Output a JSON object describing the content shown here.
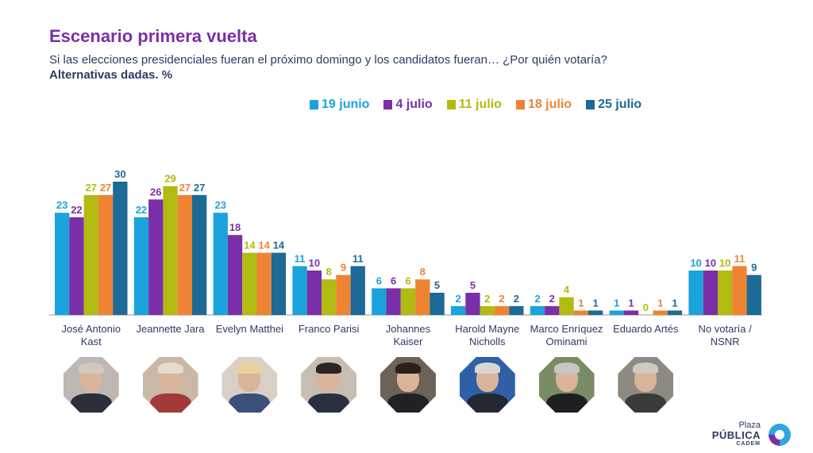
{
  "header": {
    "title": "Escenario primera vuelta",
    "subtitle": "Si las elecciones presidenciales fueran el próximo domingo y los candidatos fueran… ¿Por quién votaría?",
    "note": "Alternativas dadas. %"
  },
  "colors": {
    "19 junio": "#1aa3dc",
    "4 julio": "#7a2fa8",
    "11 julio": "#b1bb12",
    "18 julio": "#ee8433",
    "25 julio": "#1c6a95",
    "title": "#7a2fa8",
    "text": "#2e3b63"
  },
  "chart_data": {
    "type": "bar",
    "categories": [
      [
        "José Antonio",
        "Kast"
      ],
      [
        "Jeannette Jara"
      ],
      [
        "Evelyn Matthei"
      ],
      [
        "Franco Parisi"
      ],
      [
        "Johannes",
        "Kaiser"
      ],
      [
        "Harold Mayne",
        "Nicholls"
      ],
      [
        "Marco Enríquez",
        "Ominami"
      ],
      [
        "Eduardo Artés"
      ],
      [
        "No votaría /",
        "NSNR"
      ]
    ],
    "series": [
      {
        "name": "19 junio",
        "values": [
          23,
          22,
          23,
          11,
          6,
          2,
          2,
          1,
          10
        ]
      },
      {
        "name": "4 julio",
        "values": [
          22,
          26,
          18,
          10,
          6,
          5,
          2,
          1,
          10
        ]
      },
      {
        "name": "11 julio",
        "values": [
          27,
          29,
          14,
          8,
          6,
          2,
          4,
          0,
          10
        ]
      },
      {
        "name": "18 julio",
        "values": [
          27,
          27,
          14,
          9,
          8,
          2,
          1,
          1,
          11
        ]
      },
      {
        "name": "25 julio",
        "values": [
          30,
          27,
          14,
          11,
          5,
          2,
          1,
          1,
          9
        ]
      }
    ],
    "legend_position": "top",
    "data_labels": true,
    "grid": false,
    "ylim": [
      0,
      30
    ]
  },
  "photos": [
    {
      "icon": "candidate-photo-kast",
      "bg": "#bdb8b3",
      "hair": "#cfc9c2",
      "body": "#2b2f3a"
    },
    {
      "icon": "candidate-photo-jara",
      "bg": "#c9b8a6",
      "hair": "#e4dccd",
      "body": "#a23a3a"
    },
    {
      "icon": "candidate-photo-matthei",
      "bg": "#d8cfc6",
      "hair": "#e9d29a",
      "body": "#3b4f7a"
    },
    {
      "icon": "candidate-photo-parisi",
      "bg": "#c7bdb2",
      "hair": "#2b2623",
      "body": "#2a3040"
    },
    {
      "icon": "candidate-photo-kaiser",
      "bg": "#6d6258",
      "hair": "#2a211b",
      "body": "#1f2126"
    },
    {
      "icon": "candidate-photo-mayne-nicholls",
      "bg": "#2f5fa4",
      "hair": "#d9d6d2",
      "body": "#232833"
    },
    {
      "icon": "candidate-photo-enriquez-ominami",
      "bg": "#7a8c64",
      "hair": "#c8c6c2",
      "body": "#1d1f22"
    },
    {
      "icon": "candidate-photo-artes",
      "bg": "#8e8a83",
      "hair": "#cfcac2",
      "body": "#3b3a38"
    }
  ],
  "logo": {
    "line1": "Plaza",
    "line2": "PÚBLICA",
    "line3": "CADEM"
  }
}
